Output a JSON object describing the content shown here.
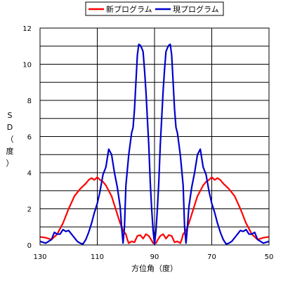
{
  "chart_data": {
    "type": "line",
    "xlabel": "方位角（度）",
    "ylabel": "SD（度）",
    "x_reversed": true,
    "xlim": [
      130,
      50
    ],
    "ylim": [
      0,
      12
    ],
    "x_ticks": [
      "130",
      "110",
      "90",
      "70",
      "50"
    ],
    "y_ticks": [
      "0",
      "2",
      "4",
      "6",
      "8",
      "10",
      "12"
    ],
    "grid": true,
    "legend_position": "top",
    "series": [
      {
        "name": "新プログラム",
        "color": "#ff0000",
        "points": [
          [
            130,
            0.45
          ],
          [
            128,
            0.4
          ],
          [
            126,
            0.3
          ],
          [
            124,
            0.6
          ],
          [
            122,
            1.2
          ],
          [
            120,
            2.0
          ],
          [
            118,
            2.7
          ],
          [
            116,
            3.1
          ],
          [
            114,
            3.4
          ],
          [
            113,
            3.6
          ],
          [
            112,
            3.7
          ],
          [
            111,
            3.6
          ],
          [
            110,
            3.75
          ],
          [
            109,
            3.6
          ],
          [
            108,
            3.5
          ],
          [
            107,
            3.3
          ],
          [
            106,
            3.0
          ],
          [
            105,
            2.7
          ],
          [
            104,
            2.2
          ],
          [
            103,
            1.7
          ],
          [
            102,
            1.2
          ],
          [
            101,
            0.8
          ],
          [
            100,
            0.6
          ],
          [
            99.5,
            0.3
          ],
          [
            99,
            0.1
          ],
          [
            98,
            0.2
          ],
          [
            97,
            0.15
          ],
          [
            96,
            0.5
          ],
          [
            95,
            0.55
          ],
          [
            94,
            0.35
          ],
          [
            93,
            0.6
          ],
          [
            92,
            0.5
          ],
          [
            91,
            0.25
          ],
          [
            90.5,
            0.1
          ],
          [
            90,
            0.1
          ],
          [
            89.5,
            0.1
          ],
          [
            89,
            0.25
          ],
          [
            88,
            0.5
          ],
          [
            87,
            0.6
          ],
          [
            86,
            0.35
          ],
          [
            85,
            0.55
          ],
          [
            84,
            0.5
          ],
          [
            83,
            0.15
          ],
          [
            82,
            0.2
          ],
          [
            81,
            0.1
          ],
          [
            80.5,
            0.3
          ],
          [
            80,
            0.6
          ],
          [
            79,
            0.8
          ],
          [
            78,
            1.2
          ],
          [
            77,
            1.7
          ],
          [
            76,
            2.2
          ],
          [
            75,
            2.7
          ],
          [
            74,
            3.0
          ],
          [
            73,
            3.3
          ],
          [
            72,
            3.5
          ],
          [
            71,
            3.6
          ],
          [
            70,
            3.75
          ],
          [
            69,
            3.6
          ],
          [
            68,
            3.7
          ],
          [
            67,
            3.6
          ],
          [
            66,
            3.4
          ],
          [
            64,
            3.1
          ],
          [
            62,
            2.7
          ],
          [
            60,
            2.0
          ],
          [
            58,
            1.2
          ],
          [
            56,
            0.6
          ],
          [
            54,
            0.3
          ],
          [
            52,
            0.4
          ],
          [
            50,
            0.45
          ]
        ]
      },
      {
        "name": "現プログラム",
        "color": "#0000cc",
        "points": [
          [
            130,
            0.2
          ],
          [
            129,
            0.15
          ],
          [
            128,
            0.1
          ],
          [
            127,
            0.2
          ],
          [
            126,
            0.3
          ],
          [
            125,
            0.7
          ],
          [
            124,
            0.6
          ],
          [
            123,
            0.6
          ],
          [
            122,
            0.85
          ],
          [
            121,
            0.75
          ],
          [
            120,
            0.8
          ],
          [
            119,
            0.6
          ],
          [
            118,
            0.4
          ],
          [
            117,
            0.2
          ],
          [
            116,
            0.1
          ],
          [
            115,
            0.05
          ],
          [
            114,
            0.3
          ],
          [
            113,
            0.7
          ],
          [
            112,
            1.2
          ],
          [
            111,
            1.8
          ],
          [
            110,
            2.3
          ],
          [
            109,
            3.0
          ],
          [
            108,
            3.9
          ],
          [
            107,
            4.3
          ],
          [
            106,
            5.3
          ],
          [
            105,
            5.0
          ],
          [
            104,
            4.0
          ],
          [
            103,
            3.2
          ],
          [
            102,
            2.1
          ],
          [
            101.5,
            1.0
          ],
          [
            101,
            0.1
          ],
          [
            100.5,
            1.0
          ],
          [
            100,
            3.3
          ],
          [
            99,
            5.0
          ],
          [
            98,
            6.2
          ],
          [
            97.5,
            6.5
          ],
          [
            97,
            7.5
          ],
          [
            96.5,
            9.0
          ],
          [
            96,
            10.5
          ],
          [
            95.5,
            11.1
          ],
          [
            95,
            11.05
          ],
          [
            94.5,
            10.9
          ],
          [
            94,
            10.7
          ],
          [
            93.5,
            9.7
          ],
          [
            93,
            8.5
          ],
          [
            92.5,
            7.0
          ],
          [
            92,
            5.5
          ],
          [
            91.5,
            3.5
          ],
          [
            91,
            2.0
          ],
          [
            90.5,
            0.8
          ],
          [
            90,
            0.05
          ],
          [
            89.5,
            0.8
          ],
          [
            89,
            2.0
          ],
          [
            88.5,
            3.5
          ],
          [
            88,
            5.5
          ],
          [
            87.5,
            7.0
          ],
          [
            87,
            8.5
          ],
          [
            86.5,
            9.7
          ],
          [
            86,
            10.7
          ],
          [
            85.5,
            10.9
          ],
          [
            85,
            11.05
          ],
          [
            84.5,
            11.1
          ],
          [
            84,
            10.5
          ],
          [
            83.5,
            9.0
          ],
          [
            83,
            7.5
          ],
          [
            82.5,
            6.5
          ],
          [
            82,
            6.2
          ],
          [
            81,
            5.0
          ],
          [
            80,
            3.3
          ],
          [
            79.5,
            1.0
          ],
          [
            79,
            0.1
          ],
          [
            78.5,
            1.0
          ],
          [
            78,
            2.1
          ],
          [
            77,
            3.2
          ],
          [
            76,
            4.0
          ],
          [
            75,
            5.0
          ],
          [
            74,
            5.3
          ],
          [
            73,
            4.3
          ],
          [
            72,
            3.9
          ],
          [
            71,
            3.0
          ],
          [
            70,
            2.3
          ],
          [
            69,
            1.8
          ],
          [
            68,
            1.2
          ],
          [
            67,
            0.7
          ],
          [
            66,
            0.3
          ],
          [
            65,
            0.05
          ],
          [
            64,
            0.1
          ],
          [
            63,
            0.2
          ],
          [
            62,
            0.4
          ],
          [
            61,
            0.6
          ],
          [
            60,
            0.8
          ],
          [
            59,
            0.75
          ],
          [
            58,
            0.85
          ],
          [
            57,
            0.6
          ],
          [
            56,
            0.6
          ],
          [
            55,
            0.7
          ],
          [
            54,
            0.3
          ],
          [
            53,
            0.2
          ],
          [
            52,
            0.1
          ],
          [
            51,
            0.15
          ],
          [
            50,
            0.2
          ]
        ]
      }
    ]
  }
}
